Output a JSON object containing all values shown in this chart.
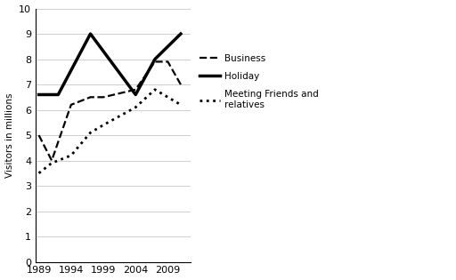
{
  "years_business": [
    1989,
    1991,
    1994,
    1997,
    1999,
    2004,
    2007,
    2009,
    2011
  ],
  "values_business": [
    5.0,
    4.0,
    6.2,
    6.5,
    6.5,
    6.8,
    7.9,
    7.9,
    7.0
  ],
  "years_holiday": [
    1989,
    1992,
    1997,
    2004,
    2007,
    2011
  ],
  "values_holiday": [
    6.6,
    6.6,
    9.0,
    6.6,
    8.0,
    9.0
  ],
  "years_friends": [
    1989,
    1991,
    1994,
    1997,
    1999,
    2004,
    2007,
    2009,
    2011
  ],
  "values_friends": [
    3.5,
    3.9,
    4.2,
    5.1,
    5.4,
    6.1,
    6.8,
    6.5,
    6.2
  ],
  "ylabel": "Visitors in millions",
  "ylim": [
    0,
    10
  ],
  "yticks": [
    0,
    1,
    2,
    3,
    4,
    5,
    6,
    7,
    8,
    9,
    10
  ],
  "xticks": [
    1989,
    1994,
    1999,
    2004,
    2009
  ],
  "xlim": [
    1988.5,
    2012.5
  ],
  "legend_business": "Business",
  "legend_holiday": "Holiday",
  "legend_friends": "Meeting Friends and\nrelatives",
  "line_color": "#000000",
  "background_color": "#ffffff",
  "grid_color": "#c8c8c8"
}
